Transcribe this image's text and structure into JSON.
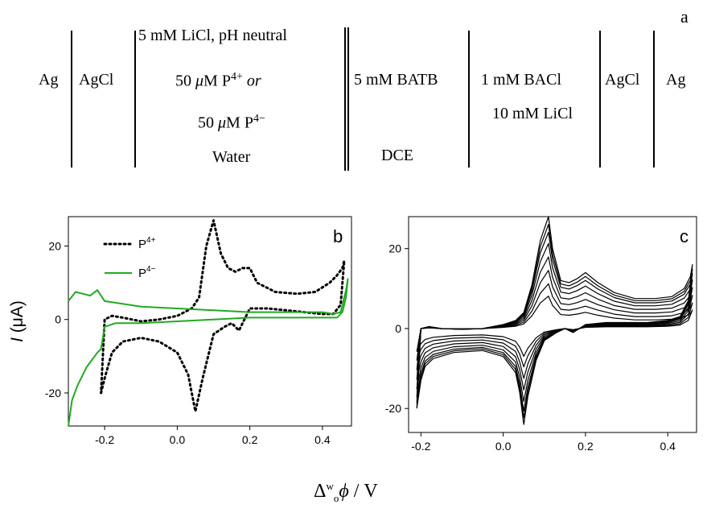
{
  "scheme": {
    "label": "a",
    "cells": {
      "ag_left": "Ag",
      "agcl_left": "AgCl",
      "water_line1": "5 mM LiCl, pH neutral",
      "water_line2_num": "50 ",
      "water_line2_mu": "μ",
      "water_line2_rest": "M P",
      "water_line2_sup": "4+",
      "water_line2_or": " or",
      "water_line3_num": "50 ",
      "water_line3_mu": "μ",
      "water_line3_rest": "M P",
      "water_line3_sup": "4−",
      "water_line4": "Water",
      "dce_line1": "5 mM BATB",
      "dce_line2": "DCE",
      "ref_line1": "1 mM BACl",
      "ref_line2": "10 mM LiCl",
      "agcl_right": "AgCl",
      "ag_right": "Ag"
    }
  },
  "shared_xlabel": {
    "delta": "Δ",
    "sup": "w",
    "sub": "o",
    "phi": "ϕ",
    "unit": " / V"
  },
  "colors": {
    "p4plus": "#000000",
    "p4minus": "#22aa22",
    "panel_c": "#000000"
  },
  "chart_data": [
    {
      "panel": "b",
      "type": "line",
      "ylabel_italic": "I",
      "ylabel_rest": " (μA)",
      "xlim": [
        -0.3,
        0.48
      ],
      "ylim": [
        -29,
        28
      ],
      "xticks": [
        -0.2,
        0.0,
        0.2,
        0.4
      ],
      "xtick_labels": [
        "-0.2",
        "0.0",
        "0.2",
        "0.4"
      ],
      "yticks": [
        -20,
        0,
        20
      ],
      "ytick_labels": [
        "-20",
        "0",
        "20"
      ],
      "legend_position": "top-left",
      "series": [
        {
          "name": "P4+",
          "legend_base": "P",
          "legend_sup": "4+",
          "style": "dotted",
          "x": [
            -0.21,
            -0.2,
            -0.18,
            -0.15,
            -0.1,
            -0.05,
            0.0,
            0.03,
            0.05,
            0.07,
            0.1,
            0.13,
            0.15,
            0.17,
            0.2,
            0.25,
            0.3,
            0.35,
            0.4,
            0.43,
            0.45,
            0.46,
            0.455,
            0.44,
            0.42,
            0.38,
            0.33,
            0.27,
            0.22,
            0.2,
            0.18,
            0.16,
            0.14,
            0.12,
            0.1,
            0.08,
            0.06,
            0.04,
            0.02,
            0.0,
            -0.05,
            -0.1,
            -0.15,
            -0.18,
            -0.2,
            -0.21
          ],
          "y": [
            -20,
            -16,
            -9,
            -6,
            -5,
            -6,
            -9,
            -15,
            -25,
            -16,
            -4,
            -2,
            -1,
            -3,
            3,
            3,
            2.5,
            2,
            1.5,
            1.5,
            4,
            16,
            14,
            12,
            10,
            7.5,
            7,
            7.5,
            10,
            14,
            14,
            13,
            14,
            18,
            27,
            20,
            6,
            3,
            2,
            1,
            0,
            -0.5,
            0.5,
            1,
            0,
            -20
          ]
        },
        {
          "name": "P4-",
          "legend_base": "P",
          "legend_sup": "4−",
          "style": "solid",
          "x": [
            -0.3,
            -0.29,
            -0.275,
            -0.26,
            -0.25,
            -0.235,
            -0.22,
            -0.21,
            -0.2,
            -0.17,
            -0.1,
            0.0,
            0.1,
            0.2,
            0.3,
            0.4,
            0.44,
            0.455,
            0.465,
            0.47,
            0.465,
            0.45,
            0.43,
            0.4,
            0.3,
            0.2,
            0.1,
            0.0,
            -0.1,
            -0.2,
            -0.22,
            -0.24,
            -0.26,
            -0.28,
            -0.3
          ],
          "y": [
            -29,
            -22,
            -18,
            -15,
            -13,
            -11,
            -9,
            -8,
            -2,
            -1,
            -1,
            -0.5,
            0,
            0.5,
            0.5,
            0.5,
            0.5,
            2,
            6,
            11,
            8,
            2,
            1.5,
            2,
            2,
            2,
            2.5,
            3,
            3.5,
            5,
            8,
            6.5,
            7,
            7.5,
            5
          ]
        }
      ]
    },
    {
      "panel": "c",
      "type": "line",
      "xlim": [
        -0.23,
        0.47
      ],
      "ylim": [
        -26,
        28
      ],
      "xticks": [
        -0.2,
        0.0,
        0.2,
        0.4
      ],
      "xtick_labels": [
        "-0.2",
        "0.0",
        "0.2",
        "0.4"
      ],
      "yticks": [
        -20,
        0,
        20
      ],
      "ytick_labels": [
        "-20",
        "0",
        "20"
      ],
      "series": [
        {
          "scale": 1.0
        },
        {
          "scale": 0.93
        },
        {
          "scale": 0.86
        },
        {
          "scale": 0.76
        },
        {
          "scale": 0.64
        },
        {
          "scale": 0.52
        },
        {
          "scale": 0.4
        },
        {
          "scale": 0.29
        }
      ],
      "base_curve": {
        "x": [
          -0.21,
          -0.2,
          -0.19,
          -0.17,
          -0.12,
          -0.05,
          0.0,
          0.03,
          0.04,
          0.05,
          0.06,
          0.08,
          0.1,
          0.13,
          0.15,
          0.17,
          0.2,
          0.25,
          0.3,
          0.35,
          0.4,
          0.43,
          0.45,
          0.46,
          0.455,
          0.44,
          0.41,
          0.37,
          0.32,
          0.27,
          0.23,
          0.2,
          0.18,
          0.16,
          0.14,
          0.12,
          0.11,
          0.09,
          0.07,
          0.05,
          0.03,
          0.0,
          -0.05,
          -0.1,
          -0.15,
          -0.18,
          -0.2,
          -0.21
        ],
        "y": [
          -20,
          -13,
          -9.5,
          -7.5,
          -6,
          -5.5,
          -7,
          -11,
          -16,
          -24,
          -17,
          -8,
          -3,
          -1,
          0,
          -1,
          1,
          1.5,
          1.5,
          1.5,
          2,
          3,
          7,
          16,
          13,
          10,
          8,
          7.5,
          7.5,
          9,
          11.5,
          14,
          12.5,
          11.5,
          12,
          20,
          28,
          22,
          11,
          4,
          2,
          1,
          0,
          -0.2,
          0,
          0.5,
          0,
          -20
        ]
      }
    }
  ]
}
